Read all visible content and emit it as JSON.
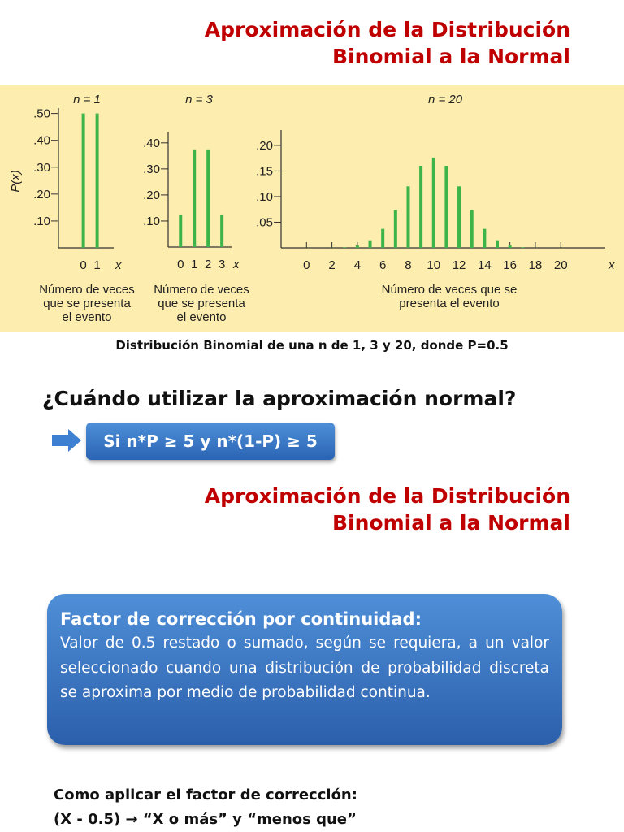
{
  "header": {
    "title_lines": [
      "Aproximación de la Distribución",
      "Binomial a la Normal"
    ]
  },
  "chart_data": [
    {
      "type": "bar",
      "title": "n = 1",
      "ylabel": "P(x)",
      "xlabel": "x",
      "description": [
        "Número de veces",
        "que se presenta",
        "el evento"
      ],
      "x": [
        0,
        1
      ],
      "values": [
        0.5,
        0.5
      ],
      "color": "#3cb44a",
      "xlim": [
        -1.8,
        2.2
      ],
      "ylim": [
        0,
        0.52
      ],
      "xticks": [
        0,
        1
      ],
      "yticks": [
        {
          "value": 0.1,
          "label": ".10"
        },
        {
          "value": 0.2,
          "label": ".20"
        },
        {
          "value": 0.3,
          "label": ".30"
        },
        {
          "value": 0.4,
          "label": ".40"
        },
        {
          "value": 0.5,
          "label": ".50"
        }
      ]
    },
    {
      "type": "bar",
      "title": "n = 3",
      "xlabel": "x",
      "description": [
        "Número de veces",
        "que se presenta",
        "el evento"
      ],
      "x": [
        0,
        1,
        2,
        3
      ],
      "values": [
        0.125,
        0.375,
        0.375,
        0.125
      ],
      "color": "#3cb44a",
      "xlim": [
        -0.9,
        3.7
      ],
      "ylim": [
        0,
        0.44
      ],
      "xticks": [
        0,
        1,
        2,
        3
      ],
      "yticks": [
        {
          "value": 0.1,
          "label": ".10"
        },
        {
          "value": 0.2,
          "label": ".20"
        },
        {
          "value": 0.3,
          "label": ".30"
        },
        {
          "value": 0.4,
          "label": ".40"
        }
      ]
    },
    {
      "type": "bar",
      "title": "n = 20",
      "xlabel": "x",
      "description": [
        "Número de veces que se",
        "presenta el evento"
      ],
      "x": [
        0,
        1,
        2,
        3,
        4,
        5,
        6,
        7,
        8,
        9,
        10,
        11,
        12,
        13,
        14,
        15,
        16,
        17,
        18,
        19,
        20
      ],
      "values": [
        1e-06,
        1.9e-05,
        0.0002,
        0.0011,
        0.0046,
        0.0148,
        0.037,
        0.0739,
        0.1201,
        0.1602,
        0.1762,
        0.1602,
        0.1201,
        0.0739,
        0.037,
        0.0148,
        0.0046,
        0.0011,
        0.0002,
        1.9e-05,
        1e-06
      ],
      "color": "#3cb44a",
      "xlim": [
        -2,
        23.5
      ],
      "ylim": [
        0,
        0.23
      ],
      "xticks": [
        0,
        2,
        4,
        6,
        8,
        10,
        12,
        14,
        16,
        18,
        20
      ],
      "yticks": [
        {
          "value": 0.05,
          "label": ".05"
        },
        {
          "value": 0.1,
          "label": ".10"
        },
        {
          "value": 0.15,
          "label": ".15"
        },
        {
          "value": 0.2,
          "label": ".20"
        }
      ]
    }
  ],
  "caption": "Distribución Binomial de una n de 1, 3 y 20, donde P=0.5",
  "question": "¿Cuándo utilizar la aproximación normal?",
  "condition": "Si n*P ≥ 5 y n*(1-P) ≥ 5",
  "section2": {
    "title_lines": [
      "Aproximación de la Distribución",
      "Binomial a la Normal"
    ]
  },
  "definition_box": {
    "title": "Factor de corrección por continuidad:",
    "text": "Valor de 0.5 restado o sumado, según se requiera, a un valor seleccionado cuando una distribución de probabilidad discreta se aproxima por medio de probabilidad continua."
  },
  "footer": {
    "lines": [
      "Como aplicar el factor de corrección:",
      "(X - 0.5) → “X o más” y “menos que”"
    ]
  }
}
